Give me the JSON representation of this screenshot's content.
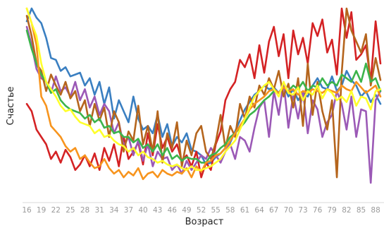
{
  "chart_data": {
    "type": "line",
    "title": "",
    "xlabel": "Возраст",
    "ylabel": "Счастье",
    "x": [
      16,
      17,
      18,
      19,
      20,
      21,
      22,
      23,
      24,
      25,
      26,
      27,
      28,
      29,
      30,
      31,
      32,
      33,
      34,
      35,
      36,
      37,
      38,
      39,
      40,
      41,
      42,
      43,
      44,
      45,
      46,
      47,
      48,
      49,
      50,
      51,
      52,
      53,
      54,
      55,
      56,
      57,
      58,
      59,
      60,
      61,
      62,
      63,
      64,
      65,
      66,
      67,
      68,
      69,
      70,
      71,
      72,
      73,
      74,
      75,
      76,
      77,
      78,
      79,
      80,
      81,
      82,
      83,
      84,
      85,
      86,
      87,
      88,
      89
    ],
    "x_tick_labels": [
      "16",
      "19",
      "22",
      "25",
      "28",
      "31",
      "34",
      "37",
      "40",
      "43",
      "46",
      "49",
      "52",
      "55",
      "58",
      "61",
      "64",
      "67",
      "70",
      "73",
      "76",
      "79",
      "82",
      "85",
      "88"
    ],
    "xlim": [
      16,
      89
    ],
    "ylim": [
      0,
      100
    ],
    "grid": false,
    "legend": "none",
    "series": [
      {
        "color": "#3a7fc1",
        "values": [
          93,
          100,
          95,
          92,
          84,
          73,
          72,
          66,
          68,
          63,
          64,
          65,
          58,
          62,
          53,
          60,
          48,
          57,
          40,
          50,
          44,
          38,
          52,
          40,
          34,
          36,
          32,
          42,
          30,
          37,
          25,
          30,
          27,
          32,
          23,
          22,
          20,
          15,
          16,
          19,
          21,
          24,
          27,
          33,
          39,
          45,
          49,
          53,
          55,
          58,
          56,
          57,
          54,
          58,
          52,
          56,
          50,
          54,
          52,
          58,
          62,
          57,
          56,
          63,
          55,
          58,
          66,
          61,
          58,
          52,
          55,
          49,
          53,
          48
        ]
      },
      {
        "color": "#d42224",
        "values": [
          48,
          44,
          34,
          30,
          26,
          18,
          22,
          16,
          23,
          19,
          12,
          15,
          20,
          14,
          21,
          12,
          24,
          17,
          26,
          14,
          30,
          18,
          22,
          27,
          15,
          32,
          20,
          37,
          24,
          30,
          22,
          26,
          17,
          20,
          14,
          22,
          8,
          16,
          12,
          26,
          33,
          50,
          56,
          60,
          72,
          68,
          75,
          62,
          80,
          65,
          82,
          90,
          74,
          86,
          62,
          88,
          75,
          84,
          70,
          92,
          85,
          94,
          76,
          83,
          64,
          100,
          84,
          98,
          72,
          75,
          80,
          60,
          93,
          70
        ]
      },
      {
        "color": "#9b59b6",
        "values": [
          90,
          80,
          67,
          62,
          60,
          54,
          63,
          55,
          57,
          52,
          60,
          50,
          56,
          46,
          52,
          42,
          48,
          44,
          32,
          38,
          25,
          30,
          20,
          28,
          17,
          26,
          14,
          22,
          18,
          19,
          12,
          15,
          10,
          17,
          12,
          16,
          20,
          18,
          24,
          20,
          16,
          22,
          26,
          18,
          30,
          28,
          22,
          35,
          46,
          50,
          30,
          55,
          42,
          60,
          35,
          53,
          40,
          55,
          32,
          50,
          45,
          30,
          38,
          42,
          55,
          48,
          34,
          52,
          30,
          45,
          44,
          5,
          50,
          55
        ]
      },
      {
        "color": "#b5651d",
        "values": [
          96,
          85,
          70,
          66,
          55,
          64,
          58,
          53,
          60,
          51,
          55,
          44,
          50,
          36,
          48,
          39,
          46,
          30,
          44,
          38,
          22,
          33,
          28,
          47,
          26,
          36,
          22,
          44,
          16,
          32,
          24,
          38,
          14,
          28,
          20,
          32,
          36,
          22,
          18,
          27,
          42,
          24,
          36,
          30,
          48,
          40,
          52,
          46,
          58,
          53,
          62,
          56,
          66,
          52,
          59,
          46,
          62,
          36,
          70,
          42,
          60,
          44,
          34,
          50,
          8,
          65,
          100,
          88,
          82,
          76,
          86,
          58,
          73,
          61
        ]
      },
      {
        "color": "#3cb44b",
        "values": [
          88,
          78,
          70,
          64,
          60,
          54,
          56,
          50,
          47,
          45,
          44,
          43,
          40,
          42,
          38,
          40,
          35,
          36,
          32,
          33,
          30,
          30,
          27,
          29,
          24,
          26,
          22,
          26,
          20,
          24,
          18,
          20,
          17,
          19,
          18,
          18,
          16,
          16,
          20,
          21,
          24,
          26,
          30,
          32,
          35,
          38,
          42,
          44,
          47,
          50,
          52,
          55,
          54,
          57,
          55,
          58,
          56,
          60,
          55,
          58,
          57,
          62,
          58,
          60,
          58,
          64,
          62,
          60,
          66,
          60,
          70,
          60,
          62,
          55
        ]
      },
      {
        "color": "#f7941d",
        "values": [
          100,
          92,
          80,
          52,
          47,
          36,
          33,
          30,
          25,
          22,
          24,
          18,
          20,
          16,
          13,
          14,
          18,
          13,
          10,
          12,
          8,
          11,
          9,
          13,
          7,
          10,
          11,
          8,
          12,
          10,
          9,
          11,
          10,
          13,
          8,
          14,
          11,
          16,
          17,
          20,
          21,
          24,
          28,
          32,
          36,
          40,
          45,
          48,
          50,
          52,
          55,
          56,
          54,
          57,
          55,
          56,
          53,
          55,
          54,
          56,
          55,
          54,
          56,
          55,
          54,
          58,
          56,
          55,
          60,
          57,
          54,
          56,
          58,
          52
        ]
      },
      {
        "color": "#ffff2b",
        "values": [
          100,
          92,
          85,
          70,
          60,
          56,
          52,
          47,
          44,
          45,
          41,
          38,
          37,
          36,
          32,
          34,
          30,
          31,
          28,
          26,
          25,
          22,
          24,
          20,
          22,
          19,
          18,
          16,
          17,
          15,
          14,
          15,
          13,
          12,
          14,
          12,
          12,
          13,
          14,
          16,
          18,
          22,
          25,
          28,
          34,
          40,
          46,
          52,
          55,
          58,
          60,
          56,
          52,
          60,
          54,
          53,
          57,
          50,
          55,
          53,
          58,
          51,
          56,
          54,
          50,
          52,
          49,
          55,
          47,
          52,
          51,
          45,
          55,
          56
        ]
      }
    ]
  }
}
